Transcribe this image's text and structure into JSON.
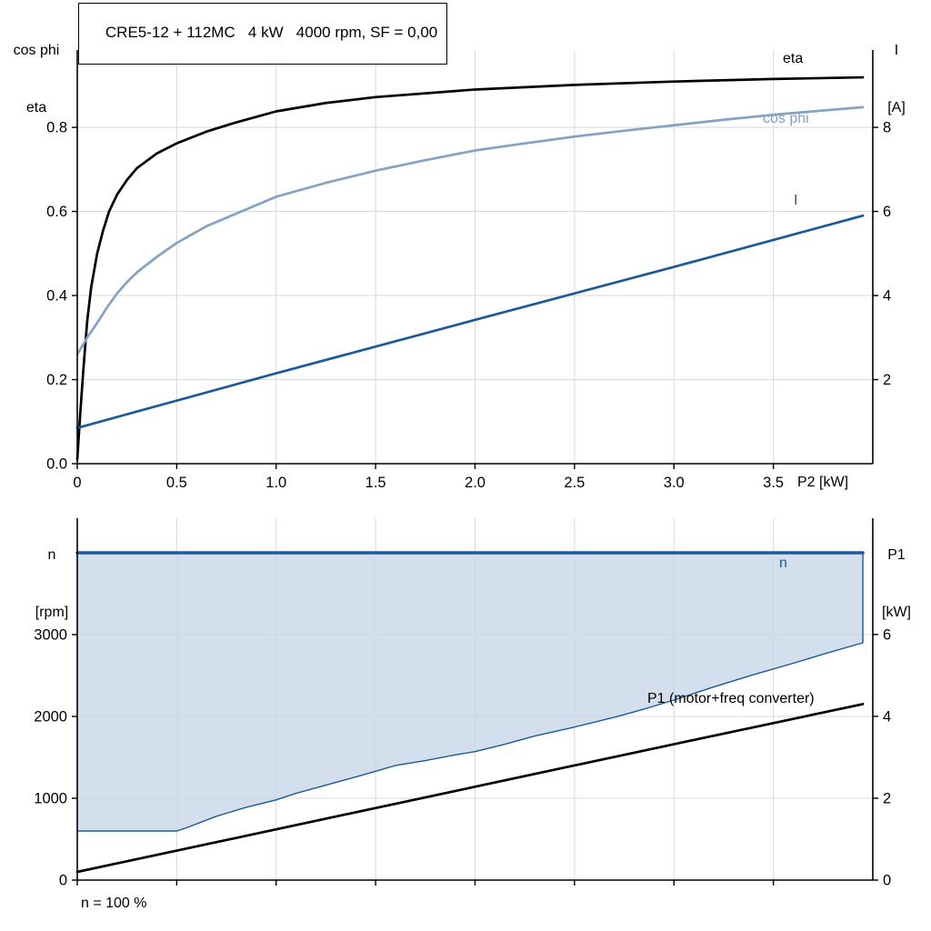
{
  "title": "CRE5-12 + 112MC   4 kW   4000 rpm, SF = 0,00",
  "labels": {
    "top_left_line1": "cos phi",
    "top_left_line2": "eta",
    "top_right_line1": "I",
    "top_right_line2": "[A]",
    "x_axis": "P2 [kW]",
    "bottom_left_line1": "n",
    "bottom_left_line2": "[rpm]",
    "bottom_right_line1": "P1",
    "bottom_right_line2": "[kW]",
    "curve_eta": "eta",
    "curve_cosphi": "cos phi",
    "curve_current": "I",
    "curve_n": "n",
    "curve_p1": "P1 (motor+freq converter)",
    "footnote": "n = 100 %"
  },
  "colors": {
    "axis": "#000000",
    "grid": "#d8d8d8",
    "dark_blue": "#1b5a99",
    "steel_blue": "#84a2c2",
    "area_fill": "#c9d7e8",
    "black": "#000000"
  },
  "chart_data": [
    {
      "type": "line",
      "name": "motor-performance",
      "title": "CRE5-12 + 112MC   4 kW   4000 rpm, SF = 0,00",
      "xlabel": "P2 [kW]",
      "ylabel_left": "cos phi / eta",
      "ylabel_right": "I [A]",
      "xlim": [
        0,
        4.0
      ],
      "ylim_left": [
        0,
        0.984
      ],
      "ylim_right": [
        0,
        9.84
      ],
      "xticks": [
        0,
        0.5,
        1.0,
        1.5,
        2.0,
        2.5,
        3.0,
        3.5
      ],
      "xtick_labels": [
        "0",
        "0.5",
        "1.0",
        "1.5",
        "2.0",
        "2.5",
        "3.0",
        "3.5"
      ],
      "yticks_left": [
        0,
        0.2,
        0.4,
        0.6,
        0.8
      ],
      "ytick_left_labels": [
        "0.0",
        "0.2",
        "0.4",
        "0.6",
        "0.8"
      ],
      "yticks_right": [
        2,
        4,
        6,
        8
      ],
      "ytick_right_labels": [
        "2",
        "4",
        "6",
        "8"
      ],
      "grid": true,
      "series": [
        {
          "name": "eta",
          "axis": "left",
          "color": "#000000",
          "width": 2.7,
          "x": [
            0,
            0.015,
            0.03,
            0.05,
            0.07,
            0.1,
            0.13,
            0.16,
            0.2,
            0.25,
            0.3,
            0.4,
            0.5,
            0.65,
            0.8,
            1.0,
            1.25,
            1.5,
            2.0,
            2.5,
            3.0,
            3.5,
            3.95
          ],
          "y": [
            0.01,
            0.12,
            0.22,
            0.34,
            0.42,
            0.5,
            0.555,
            0.6,
            0.64,
            0.675,
            0.703,
            0.738,
            0.762,
            0.79,
            0.812,
            0.838,
            0.858,
            0.872,
            0.89,
            0.901,
            0.909,
            0.915,
            0.919
          ]
        },
        {
          "name": "cos-phi",
          "axis": "left",
          "color": "#84a2c2",
          "width": 2.7,
          "x": [
            0,
            0.05,
            0.1,
            0.15,
            0.2,
            0.25,
            0.3,
            0.4,
            0.5,
            0.65,
            0.8,
            1.0,
            1.25,
            1.5,
            1.75,
            2.0,
            2.25,
            2.5,
            2.75,
            3.0,
            3.25,
            3.5,
            3.75,
            3.95
          ],
          "y": [
            0.26,
            0.3,
            0.335,
            0.372,
            0.405,
            0.432,
            0.455,
            0.492,
            0.525,
            0.565,
            0.595,
            0.635,
            0.668,
            0.697,
            0.722,
            0.745,
            0.762,
            0.778,
            0.792,
            0.805,
            0.818,
            0.83,
            0.84,
            0.848
          ]
        },
        {
          "name": "current",
          "axis": "right",
          "color": "#1b5a99",
          "width": 2.7,
          "x": [
            0,
            1.0,
            2.0,
            3.0,
            3.95
          ],
          "y": [
            0.85,
            2.15,
            3.42,
            4.68,
            5.9
          ]
        }
      ]
    },
    {
      "type": "line-area",
      "name": "speed-and-input-power",
      "xlabel": "",
      "ylabel_left": "n [rpm]",
      "ylabel_right": "P1 [kW]",
      "xlim": [
        0,
        4.0
      ],
      "ylim_left": [
        0,
        4422
      ],
      "ylim_right": [
        0,
        8.84
      ],
      "xticks": [
        0,
        0.5,
        1.0,
        1.5,
        2.0,
        2.5,
        3.0,
        3.5
      ],
      "xtick_labels": [],
      "yticks_left": [
        0,
        1000,
        2000,
        3000
      ],
      "ytick_left_labels": [
        "0",
        "1000",
        "2000",
        "3000"
      ],
      "yticks_right": [
        0,
        2,
        4,
        6
      ],
      "ytick_right_labels": [
        "0",
        "2",
        "4",
        "6"
      ],
      "grid": true,
      "area": {
        "fill": "#c9d7e8",
        "opacity": 0.8,
        "upper": {
          "x": [
            0,
            3.95
          ],
          "y": [
            4000,
            4000
          ]
        },
        "lower": {
          "x": [
            0,
            0.5,
            0.55,
            0.7,
            0.85,
            1.0,
            1.1,
            1.25,
            1.4,
            1.5,
            1.6,
            1.75,
            1.9,
            2.0,
            2.15,
            2.3,
            2.5,
            2.7,
            2.85,
            3.0,
            3.2,
            3.4,
            3.5,
            3.6,
            3.75,
            3.95
          ],
          "y": [
            600,
            600,
            640,
            780,
            890,
            980,
            1060,
            1160,
            1260,
            1330,
            1400,
            1460,
            1530,
            1570,
            1660,
            1760,
            1870,
            1990,
            2090,
            2200,
            2360,
            2510,
            2580,
            2650,
            2760,
            2900
          ]
        }
      },
      "series": [
        {
          "name": "n-lower-limit",
          "axis": "left",
          "color": "#1b5a99",
          "width": 1.4,
          "x": [
            0,
            0.5,
            0.55,
            0.7,
            0.85,
            1.0,
            1.1,
            1.25,
            1.4,
            1.5,
            1.6,
            1.75,
            1.9,
            2.0,
            2.15,
            2.3,
            2.5,
            2.7,
            2.85,
            3.0,
            3.2,
            3.4,
            3.5,
            3.6,
            3.75,
            3.95,
            3.95
          ],
          "y": [
            600,
            600,
            640,
            780,
            890,
            980,
            1060,
            1160,
            1260,
            1330,
            1400,
            1460,
            1530,
            1570,
            1660,
            1760,
            1870,
            1990,
            2090,
            2200,
            2360,
            2510,
            2580,
            2650,
            2760,
            2900,
            4000
          ]
        },
        {
          "name": "n-max",
          "axis": "left",
          "color": "#1b5a99",
          "width": 3.5,
          "x": [
            0,
            3.95
          ],
          "y": [
            4000,
            4000
          ]
        },
        {
          "name": "p1",
          "axis": "right",
          "color": "#000000",
          "width": 2.7,
          "x": [
            0,
            1.0,
            2.0,
            3.0,
            3.95
          ],
          "y": [
            0.2,
            1.24,
            2.28,
            3.32,
            4.3
          ]
        }
      ],
      "footnote": "n = 100 %"
    }
  ]
}
